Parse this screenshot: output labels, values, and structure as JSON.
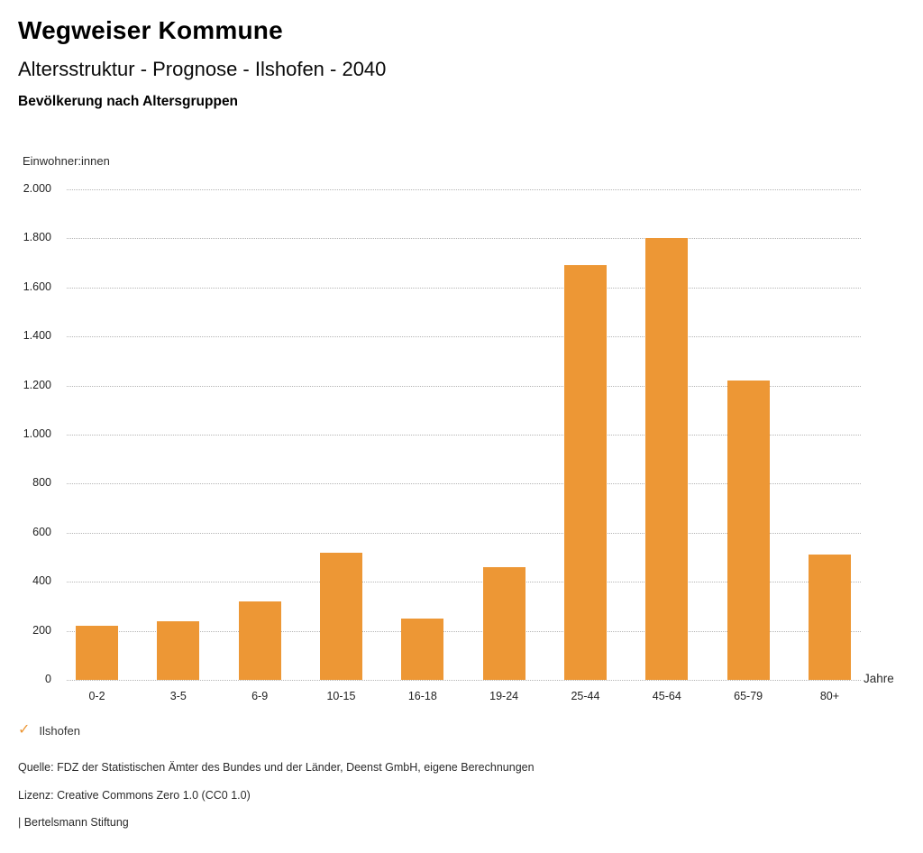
{
  "header": {
    "title": "Wegweiser Kommune",
    "subtitle": "Altersstruktur - Prognose - Ilshofen - 2040",
    "chart_heading": "Bevölkerung nach Altersgruppen"
  },
  "chart_data": {
    "type": "bar",
    "title": "Bevölkerung nach Altersgruppen",
    "categories": [
      "0-2",
      "3-5",
      "6-9",
      "10-15",
      "16-18",
      "19-24",
      "25-44",
      "45-64",
      "65-79",
      "80+"
    ],
    "values": [
      220,
      240,
      320,
      520,
      250,
      460,
      1690,
      1800,
      1220,
      510
    ],
    "series": [
      {
        "name": "Ilshofen",
        "values": [
          220,
          240,
          320,
          520,
          250,
          460,
          1690,
          1800,
          1220,
          510
        ]
      }
    ],
    "xlabel": "Jahre",
    "ylabel": "Einwohner:innen",
    "ylim": [
      0,
      2000
    ],
    "ytick_step": 200,
    "ytick_labels": [
      "0",
      "200",
      "400",
      "600",
      "800",
      "1.000",
      "1.200",
      "1.400",
      "1.600",
      "1.800",
      "2.000"
    ],
    "grid": "horizontal-dotted",
    "legend_position": "bottom-left",
    "bar_color": "#ED9735"
  },
  "legend": {
    "check_icon": "✓",
    "label": "Ilshofen"
  },
  "footer": {
    "source": "Quelle: FDZ der Statistischen Ämter des Bundes und der Länder, Deenst GmbH, eigene Berechnungen",
    "license": "Lizenz: Creative Commons Zero 1.0 (CC0 1.0)",
    "attribution": "| Bertelsmann Stiftung"
  },
  "colors": {
    "accent": "#ED9735",
    "grid": "#B5B5B5",
    "text": "#1A1A1A",
    "background": "#FFFFFF"
  }
}
